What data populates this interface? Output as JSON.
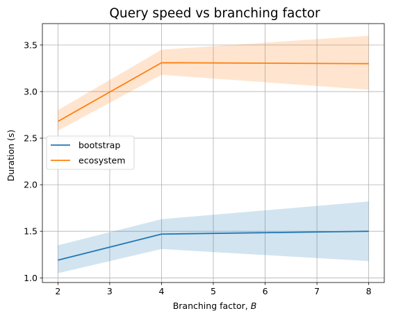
{
  "chart_data": {
    "type": "line",
    "title": "Query speed vs branching factor",
    "xlabel": "Branching factor, ",
    "xlabel_var": "B",
    "ylabel": "Duration (s)",
    "x": [
      2,
      4,
      8
    ],
    "xlim": [
      1.7,
      8.3
    ],
    "ylim": [
      0.95,
      3.73
    ],
    "xticks": [
      2,
      3,
      4,
      5,
      6,
      7,
      8
    ],
    "yticks": [
      "1.0",
      "1.5",
      "2.0",
      "2.5",
      "3.0",
      "3.5"
    ],
    "grid": true,
    "legend_position": "center-left",
    "series": [
      {
        "name": "bootstrap",
        "color": "#1f77b4",
        "band_color": "#1f77b4",
        "values": [
          1.19,
          1.47,
          1.5
        ],
        "lower": [
          1.05,
          1.31,
          1.18
        ],
        "upper": [
          1.35,
          1.63,
          1.82
        ]
      },
      {
        "name": "ecosystem",
        "color": "#ff7f0e",
        "band_color": "#ff7f0e",
        "values": [
          2.68,
          3.31,
          3.3
        ],
        "lower": [
          2.58,
          3.18,
          3.02
        ],
        "upper": [
          2.8,
          3.45,
          3.6
        ]
      }
    ]
  }
}
